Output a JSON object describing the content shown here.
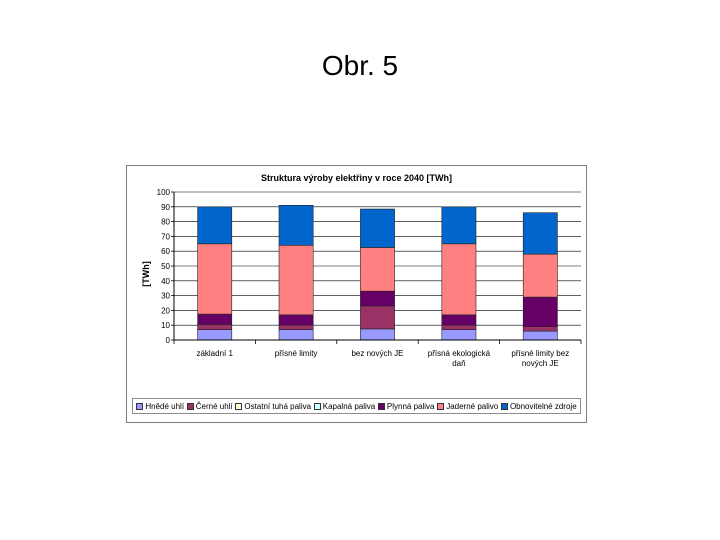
{
  "slide": {
    "title": "Obr. 5"
  },
  "chart_data": {
    "type": "bar",
    "stacked": true,
    "title": "Struktura výroby elektřiny v roce 2040 [TWh]",
    "ylabel": "[TWh]",
    "xlabel": "",
    "ylim": [
      0,
      100
    ],
    "yticks": [
      0,
      10,
      20,
      30,
      40,
      50,
      60,
      70,
      80,
      90,
      100
    ],
    "grid": true,
    "legend_position": "bottom",
    "categories": [
      [
        "základní 1"
      ],
      [
        "přísné limity"
      ],
      [
        "bez nových JE"
      ],
      [
        "přísná ekologická",
        "daň"
      ],
      [
        "přísné limity bez",
        "nových JE"
      ]
    ],
    "series": [
      {
        "name": "Hnědé uhlí",
        "color": "#9999ff",
        "values": [
          7,
          7,
          7.5,
          7,
          6
        ]
      },
      {
        "name": "Černé uhlí",
        "color": "#993366",
        "values": [
          3.5,
          3,
          15.5,
          3,
          3
        ]
      },
      {
        "name": "Ostatní tuhá paliva",
        "color": "#ffffcc",
        "values": [
          0,
          0,
          0,
          0,
          0
        ]
      },
      {
        "name": "Kapalná paliva",
        "color": "#ccffff",
        "values": [
          0,
          0,
          0,
          0,
          0
        ]
      },
      {
        "name": "Plynná paliva",
        "color": "#660066",
        "values": [
          7,
          7,
          10,
          7,
          20
        ]
      },
      {
        "name": "Jaderné palivo",
        "color": "#ff8080",
        "values": [
          47.5,
          47,
          29.5,
          48,
          29
        ]
      },
      {
        "name": "Obnovitelné zdroje",
        "color": "#0066cc",
        "values": [
          25,
          27,
          26,
          25,
          28
        ]
      }
    ]
  }
}
